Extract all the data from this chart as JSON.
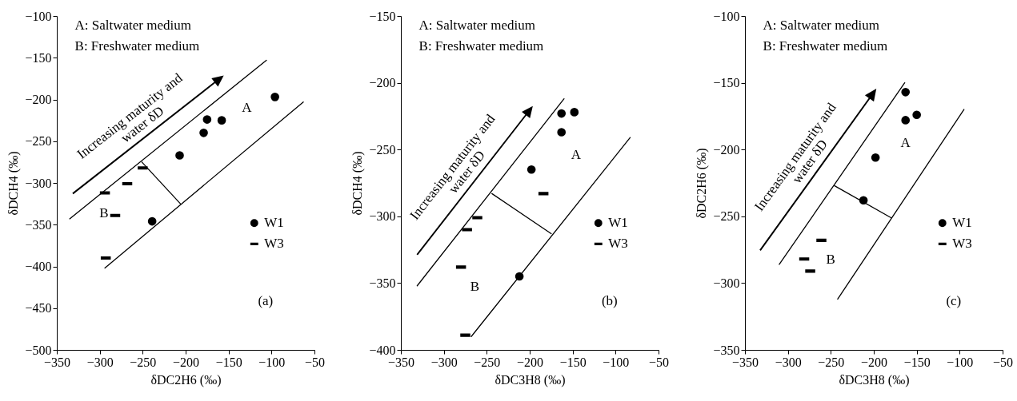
{
  "chart_data": [
    {
      "type": "scatter",
      "xlabel": "δDC2H6 (‰)",
      "ylabel": "δDCH4 (‰)",
      "xlim": [
        -350,
        -50
      ],
      "ylim": [
        -500,
        -100
      ],
      "xticks": [
        -350,
        -300,
        -250,
        -200,
        -150,
        -100,
        -50
      ],
      "yticks": [
        -500,
        -450,
        -400,
        -350,
        -300,
        -250,
        -200,
        -150,
        -100
      ],
      "legend": "right",
      "series": [
        {
          "name": "W1",
          "marker": "circle",
          "color": "#000000",
          "x": [
            -96,
            -175,
            -158,
            -179,
            -207,
            -239
          ],
          "values": [
            -197,
            -224,
            -225,
            -240,
            -267,
            -346
          ]
        },
        {
          "name": "W3",
          "color": "#000000",
          "x": [
            -250,
            -268,
            -294,
            -282,
            -293
          ],
          "values": [
            -282,
            -301,
            -312,
            -339,
            -390
          ]
        },
        {
          "type": "line",
          "color": "#000000",
          "x": [
            -335,
            -106
          ],
          "values": [
            -343,
            -153
          ]
        },
        {
          "type": "line",
          "color": "#000000",
          "x": [
            -294,
            -63
          ],
          "values": [
            -402,
            -203
          ]
        },
        {
          "type": "line",
          "color": "#000000",
          "x": [
            -251,
            -206
          ],
          "values": [
            -275,
            -325
          ]
        }
      ],
      "annotations": [
        "A: Saltwater medium",
        "B: Freshwater medium",
        "Increasing maturity and",
        "water δD",
        "A",
        "B",
        "(a)"
      ]
    },
    {
      "type": "scatter",
      "xlabel": "δDC3H8 (‰)",
      "ylabel": "δDCH4 (‰)",
      "xlim": [
        -350,
        -50
      ],
      "ylim": [
        -400,
        -150
      ],
      "xticks": [
        -350,
        -300,
        -250,
        -200,
        -150,
        -100,
        -50
      ],
      "yticks": [
        -400,
        -350,
        -300,
        -250,
        -200,
        -150
      ],
      "legend": "right",
      "series": [
        {
          "name": "W1",
          "marker": "circle",
          "color": "#000000",
          "x": [
            -163,
            -148,
            -163,
            -198,
            -212
          ],
          "values": [
            -223,
            -222,
            -237,
            -265,
            -345
          ]
        },
        {
          "name": "W3",
          "color": "#000000",
          "x": [
            -184,
            -261,
            -273,
            -280,
            -275
          ],
          "values": [
            -283,
            -301,
            -310,
            -338,
            -389
          ]
        },
        {
          "type": "line",
          "color": "#000000",
          "x": [
            -331,
            -160
          ],
          "values": [
            -352,
            -212
          ]
        },
        {
          "type": "line",
          "color": "#000000",
          "x": [
            -268,
            -83
          ],
          "values": [
            -390,
            -241
          ]
        },
        {
          "type": "line",
          "color": "#000000",
          "x": [
            -244,
            -175
          ],
          "values": [
            -283,
            -313
          ]
        }
      ],
      "annotations": [
        "A: Saltwater medium",
        "B: Freshwater medium",
        "Increasing maturity and",
        "water δD",
        "A",
        "B",
        "(b)"
      ]
    },
    {
      "type": "scatter",
      "xlabel": "δDC3H8 (‰)",
      "ylabel": "δDC2H6 (‰)",
      "xlim": [
        -350,
        -50
      ],
      "ylim": [
        -350,
        -100
      ],
      "xticks": [
        -350,
        -300,
        -250,
        -200,
        -150,
        -100,
        -50
      ],
      "yticks": [
        -350,
        -300,
        -250,
        -200,
        -150,
        -100
      ],
      "legend": "right",
      "series": [
        {
          "name": "W1",
          "marker": "circle",
          "color": "#000000",
          "x": [
            -163,
            -163,
            -150,
            -198,
            -212
          ],
          "values": [
            -157,
            -178,
            -174,
            -206,
            -238
          ]
        },
        {
          "name": "W3",
          "color": "#000000",
          "x": [
            -261,
            -281,
            -274
          ],
          "values": [
            -268,
            -282,
            -291
          ]
        },
        {
          "type": "line",
          "color": "#000000",
          "x": [
            -310,
            -164
          ],
          "values": [
            -286,
            -150
          ]
        },
        {
          "type": "line",
          "color": "#000000",
          "x": [
            -242,
            -95
          ],
          "values": [
            -312,
            -170
          ]
        },
        {
          "type": "line",
          "color": "#000000",
          "x": [
            -246,
            -180
          ],
          "values": [
            -227,
            -251
          ]
        }
      ],
      "annotations": [
        "A: Saltwater medium",
        "B: Freshwater medium",
        "Increasing maturity and",
        "water δD",
        "A",
        "B",
        "(c)"
      ]
    }
  ]
}
